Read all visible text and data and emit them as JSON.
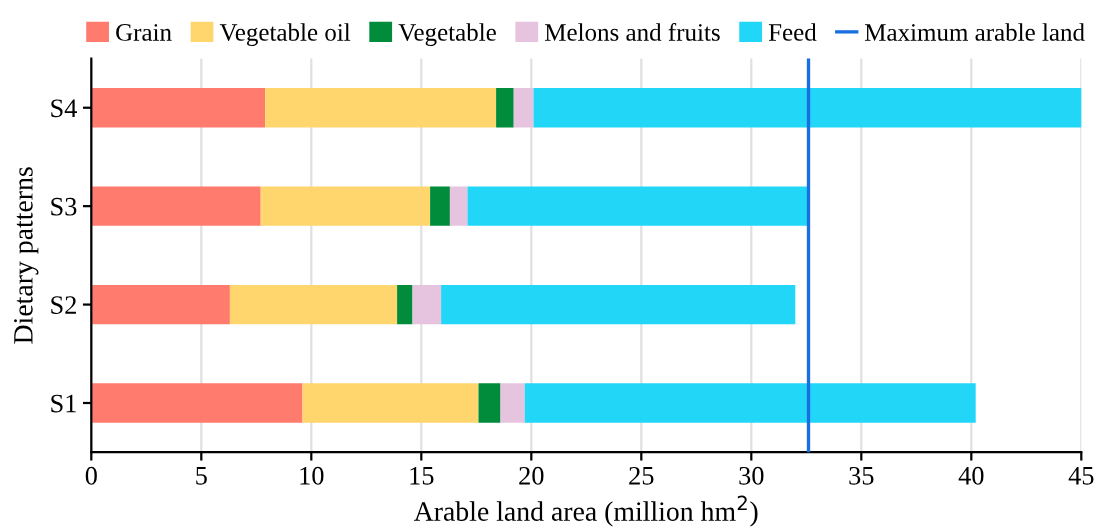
{
  "chart_data": {
    "type": "bar",
    "orientation": "horizontal",
    "stacked": true,
    "xlabel": "Arable land area (million hm$^{2}$)",
    "ylabel": "Dietary patterns",
    "categories": [
      "S4",
      "S3",
      "S2",
      "S1"
    ],
    "series": [
      {
        "name": "Grain",
        "color": "#ff7b6e",
        "values": [
          7.9,
          7.7,
          6.3,
          9.6
        ]
      },
      {
        "name": "Vegetable oil",
        "color": "#ffd66e",
        "values": [
          10.5,
          7.7,
          7.6,
          8.0
        ]
      },
      {
        "name": "Vegetable",
        "color": "#008c3a",
        "values": [
          0.8,
          0.9,
          0.7,
          1.0
        ]
      },
      {
        "name": "Melons and fruits",
        "color": "#e6c4e0",
        "values": [
          0.9,
          0.8,
          1.3,
          1.1
        ]
      },
      {
        "name": "Feed",
        "color": "#22d6f8",
        "values": [
          25.0,
          15.5,
          16.1,
          20.5
        ]
      }
    ],
    "ref_lines": [
      {
        "axis": "x",
        "value": 32.6,
        "label": "Maximum arable land",
        "color": "#1a6fe0"
      }
    ],
    "xlim": [
      0,
      45
    ],
    "xticks": [
      0,
      5,
      10,
      15,
      20,
      25,
      30,
      35,
      40,
      45
    ],
    "grid": "x",
    "legend": "top"
  }
}
